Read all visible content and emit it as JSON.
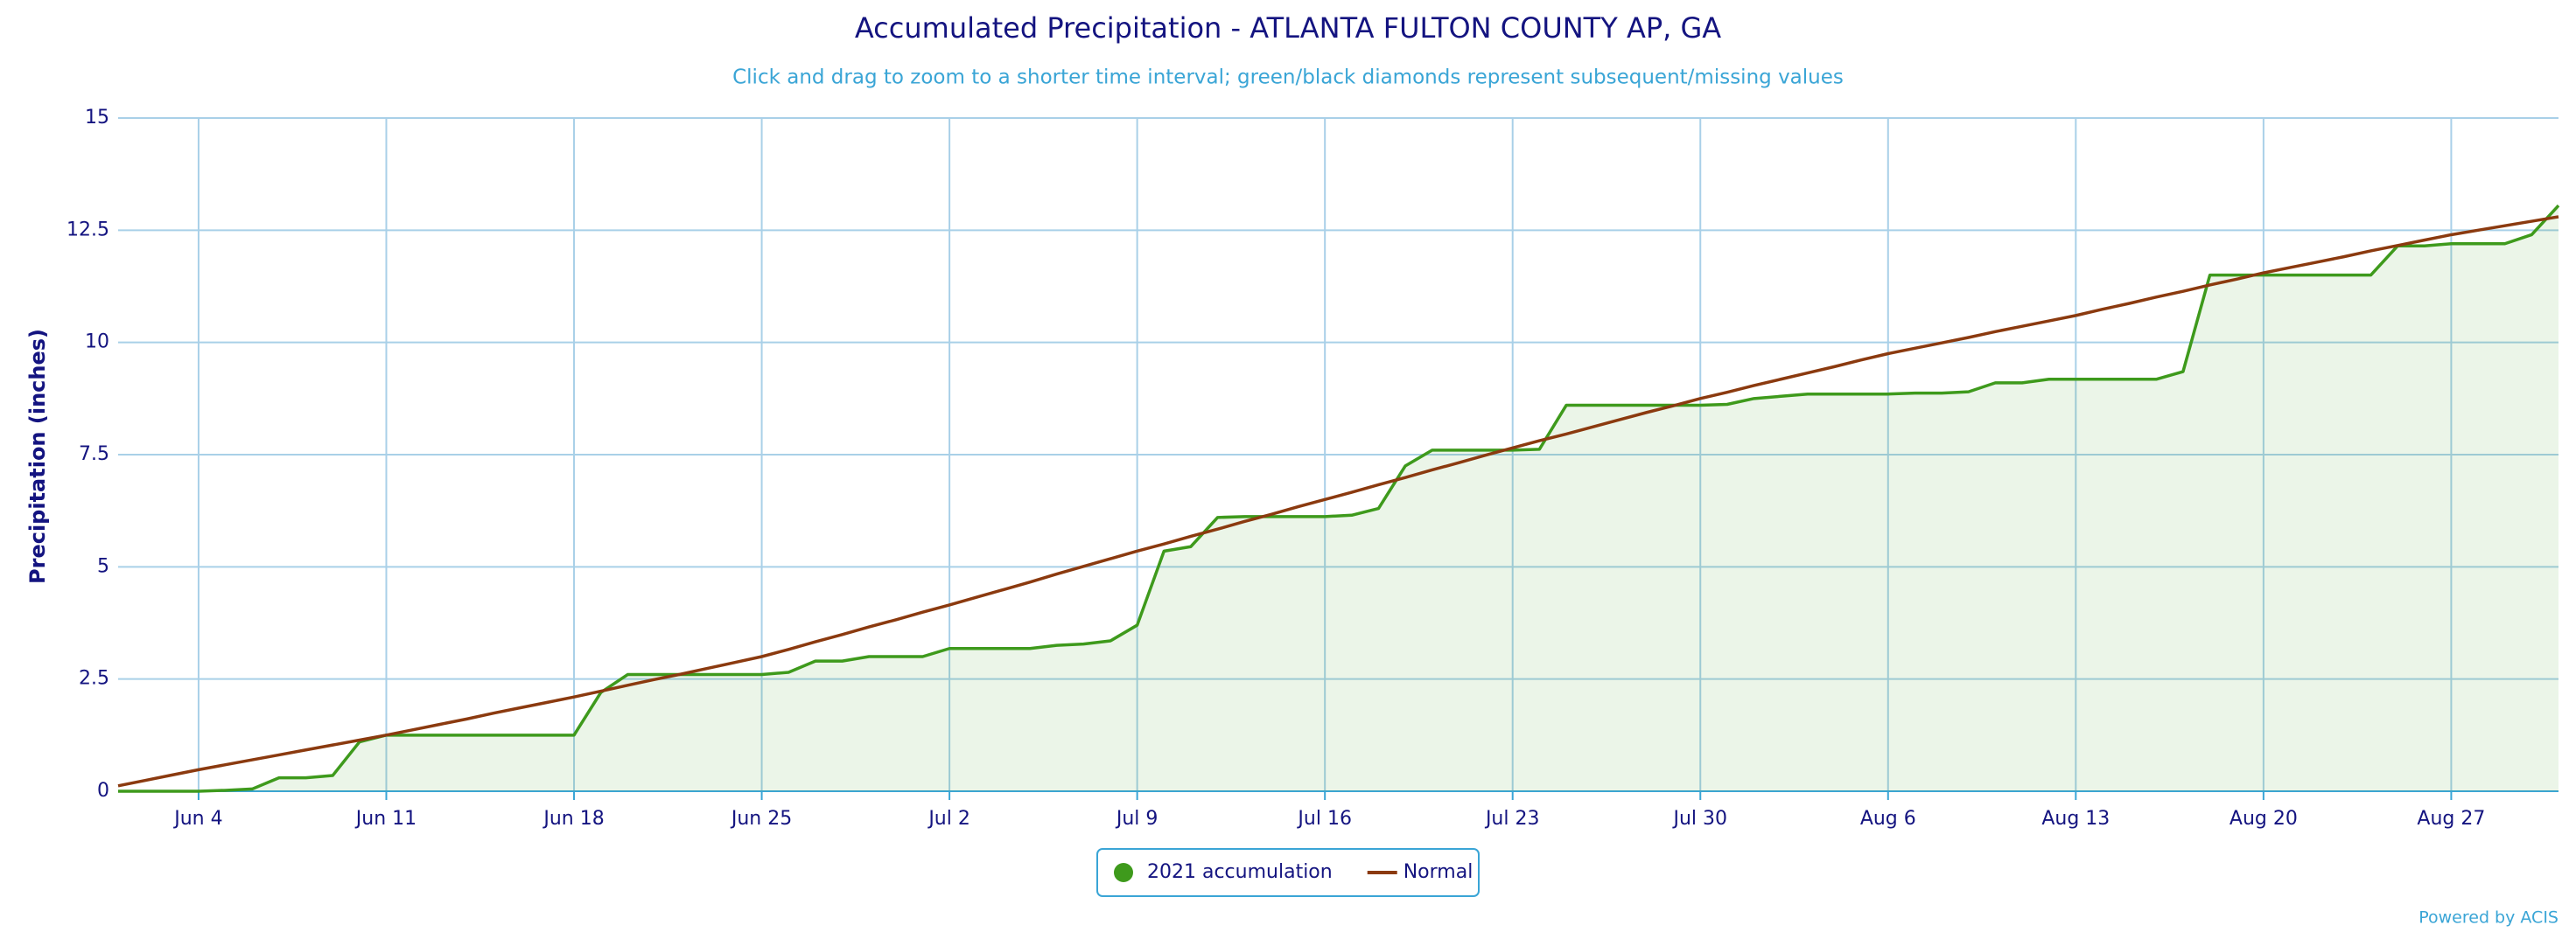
{
  "chart_data": {
    "type": "line",
    "title": "Accumulated Precipitation - ATLANTA FULTON COUNTY AP, GA",
    "subtitle": "Click and drag to zoom to a shorter time interval; green/black diamonds represent subsequent/missing values",
    "y_label": "Precipitation (inches)",
    "credit": "Powered by ACIS",
    "categories": [
      null,
      null,
      null,
      "Jun 4",
      null,
      null,
      null,
      null,
      null,
      null,
      "Jun 11",
      null,
      null,
      null,
      null,
      null,
      null,
      "Jun 18",
      null,
      null,
      null,
      null,
      null,
      null,
      "Jun 25",
      null,
      null,
      null,
      null,
      null,
      null,
      "Jul 2",
      null,
      null,
      null,
      null,
      null,
      null,
      "Jul 9",
      null,
      null,
      null,
      null,
      null,
      null,
      "Jul 16",
      null,
      null,
      null,
      null,
      null,
      null,
      "Jul 23",
      null,
      null,
      null,
      null,
      null,
      null,
      "Jul 30",
      null,
      null,
      null,
      null,
      null,
      null,
      "Aug 6",
      null,
      null,
      null,
      null,
      null,
      null,
      "Aug 13",
      null,
      null,
      null,
      null,
      null,
      null,
      "Aug 20",
      null,
      null,
      null,
      null,
      null,
      null,
      "Aug 27",
      null,
      null,
      null,
      null
    ],
    "series": [
      {
        "name": "2021 accumulation",
        "color": "#3e9a1c",
        "area": true,
        "legend_marker": "circle",
        "values": [
          0,
          0,
          0,
          0,
          0.02,
          0.05,
          0.3,
          0.3,
          0.35,
          1.1,
          1.25,
          1.25,
          1.25,
          1.25,
          1.25,
          1.25,
          1.25,
          1.25,
          2.2,
          2.6,
          2.6,
          2.6,
          2.6,
          2.6,
          2.6,
          2.65,
          2.9,
          2.9,
          3.0,
          3.0,
          3.0,
          3.18,
          3.18,
          3.18,
          3.18,
          3.25,
          3.28,
          3.35,
          3.7,
          5.35,
          5.45,
          6.1,
          6.12,
          6.12,
          6.12,
          6.12,
          6.15,
          6.3,
          7.25,
          7.6,
          7.6,
          7.6,
          7.6,
          7.62,
          8.6,
          8.6,
          8.6,
          8.6,
          8.6,
          8.6,
          8.62,
          8.75,
          8.8,
          8.85,
          8.85,
          8.85,
          8.85,
          8.87,
          8.87,
          8.9,
          9.1,
          9.1,
          9.18,
          9.18,
          9.18,
          9.18,
          9.18,
          9.35,
          11.5,
          11.5,
          11.5,
          11.5,
          11.5,
          11.5,
          11.5,
          12.15,
          12.15,
          12.2,
          12.2,
          12.2,
          12.4,
          13.05
        ]
      },
      {
        "name": "Normal",
        "color": "#8b3a0f",
        "area": false,
        "legend_marker": "line",
        "values": [
          0.12,
          0.24,
          0.36,
          0.48,
          0.59,
          0.7,
          0.81,
          0.92,
          1.03,
          1.14,
          1.25,
          1.37,
          1.49,
          1.61,
          1.74,
          1.86,
          1.98,
          2.1,
          2.23,
          2.36,
          2.49,
          2.61,
          2.74,
          2.87,
          3.0,
          3.16,
          3.33,
          3.49,
          3.66,
          3.82,
          3.99,
          4.15,
          4.32,
          4.49,
          4.66,
          4.84,
          5.01,
          5.18,
          5.35,
          5.51,
          5.68,
          5.84,
          6.01,
          6.17,
          6.34,
          6.5,
          6.66,
          6.83,
          6.99,
          7.16,
          7.32,
          7.49,
          7.65,
          7.81,
          7.96,
          8.12,
          8.28,
          8.44,
          8.59,
          8.75,
          8.89,
          9.04,
          9.18,
          9.32,
          9.46,
          9.61,
          9.75,
          9.87,
          9.99,
          10.11,
          10.24,
          10.36,
          10.48,
          10.6,
          10.74,
          10.87,
          11.01,
          11.14,
          11.28,
          11.41,
          11.55,
          11.67,
          11.79,
          11.91,
          12.04,
          12.16,
          12.28,
          12.4,
          12.5,
          12.6,
          12.7,
          12.8
        ]
      }
    ],
    "ylim": [
      0,
      15
    ],
    "yticks": [
      0,
      2.5,
      5,
      7.5,
      10,
      12.5,
      15
    ],
    "grid": true
  }
}
